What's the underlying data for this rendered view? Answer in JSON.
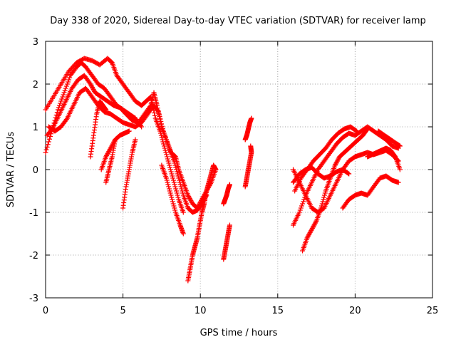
{
  "chart_data": {
    "type": "scatter",
    "title": "Day 338 of 2020, Sidereal Day-to-day VTEC variation (SDTVAR) for receiver lamp",
    "xlabel": "GPS time / hours",
    "ylabel": "SDTVAR / TECUs",
    "xlim": [
      0,
      25
    ],
    "ylim": [
      -3,
      3
    ],
    "x_ticks": [
      "0",
      "5",
      "10",
      "15",
      "20",
      "25"
    ],
    "y_ticks": [
      "-3",
      "-2",
      "-1",
      "0",
      "1",
      "2",
      "3"
    ],
    "grid": true,
    "marker": "+",
    "series": [
      {
        "color": "#ff0000",
        "points": [
          [
            0.0,
            0.4
          ],
          [
            0.4,
            0.9
          ],
          [
            0.8,
            1.4
          ],
          [
            1.2,
            1.8
          ],
          [
            1.6,
            2.2
          ],
          [
            2.0,
            2.4
          ],
          [
            2.3,
            2.5
          ],
          [
            2.6,
            2.4
          ],
          [
            3.0,
            2.2
          ],
          [
            3.4,
            2.0
          ],
          [
            3.8,
            1.9
          ],
          [
            4.2,
            1.7
          ],
          [
            4.6,
            1.5
          ],
          [
            5.0,
            1.4
          ],
          [
            5.4,
            1.3
          ],
          [
            5.8,
            1.2
          ],
          [
            6.2,
            1.0
          ]
        ]
      },
      {
        "color": "#ff0000",
        "points": [
          [
            0.0,
            1.4
          ],
          [
            0.5,
            1.7
          ],
          [
            1.0,
            2.0
          ],
          [
            1.5,
            2.3
          ],
          [
            2.0,
            2.5
          ],
          [
            2.5,
            2.6
          ],
          [
            3.0,
            2.55
          ],
          [
            3.5,
            2.45
          ],
          [
            4.0,
            2.6
          ],
          [
            4.3,
            2.5
          ],
          [
            4.6,
            2.2
          ],
          [
            5.0,
            2.0
          ],
          [
            5.4,
            1.8
          ],
          [
            5.8,
            1.6
          ],
          [
            6.2,
            1.5
          ],
          [
            6.5,
            1.6
          ],
          [
            6.8,
            1.7
          ],
          [
            7.1,
            1.2
          ],
          [
            7.4,
            0.9
          ],
          [
            7.7,
            0.5
          ],
          [
            8.0,
            0.1
          ],
          [
            8.3,
            -0.3
          ],
          [
            8.6,
            -0.7
          ],
          [
            8.9,
            -1.0
          ]
        ]
      },
      {
        "color": "#ff0000",
        "points": [
          [
            0.1,
            0.8
          ],
          [
            0.5,
            1.0
          ],
          [
            0.9,
            1.3
          ],
          [
            1.3,
            1.6
          ],
          [
            1.7,
            1.9
          ],
          [
            2.1,
            2.1
          ],
          [
            2.5,
            2.2
          ],
          [
            2.9,
            2.0
          ],
          [
            3.2,
            1.8
          ],
          [
            3.6,
            1.7
          ],
          [
            4.0,
            1.6
          ],
          [
            4.4,
            1.5
          ],
          [
            4.8,
            1.45
          ],
          [
            5.2,
            1.3
          ],
          [
            5.6,
            1.15
          ],
          [
            6.0,
            1.1
          ],
          [
            6.4,
            1.3
          ],
          [
            6.8,
            1.5
          ],
          [
            7.0,
            1.8
          ],
          [
            7.2,
            1.5
          ],
          [
            7.5,
            1.0
          ],
          [
            7.8,
            0.7
          ],
          [
            8.1,
            0.4
          ],
          [
            8.4,
            0.3
          ],
          [
            8.6,
            0.0
          ],
          [
            8.9,
            -0.3
          ],
          [
            9.2,
            -0.6
          ],
          [
            9.5,
            -0.8
          ],
          [
            9.8,
            -0.9
          ],
          [
            10.1,
            -0.7
          ],
          [
            10.4,
            -0.5
          ],
          [
            10.7,
            -0.3
          ],
          [
            11.0,
            0.0
          ]
        ]
      },
      {
        "color": "#ff0000",
        "points": [
          [
            0.2,
            1.0
          ],
          [
            0.6,
            0.9
          ],
          [
            1.0,
            1.0
          ],
          [
            1.4,
            1.2
          ],
          [
            1.8,
            1.5
          ],
          [
            2.2,
            1.8
          ],
          [
            2.6,
            1.9
          ],
          [
            3.0,
            1.7
          ],
          [
            3.4,
            1.5
          ],
          [
            3.8,
            1.35
          ],
          [
            4.2,
            1.3
          ],
          [
            4.6,
            1.2
          ],
          [
            5.0,
            1.1
          ],
          [
            5.4,
            1.05
          ],
          [
            5.8,
            1.0
          ],
          [
            6.2,
            1.1
          ],
          [
            6.6,
            1.3
          ],
          [
            7.0,
            1.5
          ],
          [
            7.3,
            1.35
          ],
          [
            7.6,
            0.9
          ],
          [
            8.0,
            0.5
          ],
          [
            8.3,
            0.2
          ],
          [
            8.6,
            -0.2
          ],
          [
            8.9,
            -0.6
          ],
          [
            9.2,
            -0.9
          ],
          [
            9.5,
            -1.0
          ],
          [
            9.8,
            -0.95
          ],
          [
            10.1,
            -0.8
          ],
          [
            10.4,
            -0.6
          ]
        ]
      },
      {
        "color": "#ff0000",
        "points": [
          [
            2.9,
            0.3
          ],
          [
            3.1,
            0.8
          ],
          [
            3.3,
            1.3
          ],
          [
            3.5,
            1.6
          ],
          [
            3.7,
            1.5
          ],
          [
            3.9,
            1.4
          ]
        ]
      },
      {
        "color": "#ff0000",
        "points": [
          [
            3.6,
            0.0
          ],
          [
            3.9,
            0.3
          ],
          [
            4.2,
            0.5
          ],
          [
            4.5,
            0.7
          ],
          [
            4.8,
            0.8
          ],
          [
            5.1,
            0.85
          ],
          [
            5.4,
            0.9
          ]
        ]
      },
      {
        "color": "#ff0000",
        "points": [
          [
            3.9,
            -0.3
          ],
          [
            4.1,
            0.0
          ],
          [
            4.3,
            0.3
          ],
          [
            4.5,
            0.7
          ]
        ]
      },
      {
        "color": "#ff0000",
        "points": [
          [
            5.0,
            -0.9
          ],
          [
            5.2,
            -0.4
          ],
          [
            5.4,
            0.0
          ],
          [
            5.6,
            0.4
          ],
          [
            5.8,
            0.7
          ]
        ]
      },
      {
        "color": "#ff0000",
        "points": [
          [
            7.5,
            0.1
          ],
          [
            7.8,
            -0.2
          ],
          [
            8.1,
            -0.6
          ],
          [
            8.4,
            -1.0
          ],
          [
            8.7,
            -1.3
          ],
          [
            8.9,
            -1.5
          ]
        ]
      },
      {
        "color": "#ff0000",
        "points": [
          [
            9.2,
            -2.6
          ],
          [
            9.35,
            -2.3
          ],
          [
            9.5,
            -2.0
          ],
          [
            9.65,
            -1.8
          ],
          [
            9.8,
            -1.6
          ],
          [
            9.95,
            -1.3
          ],
          [
            10.1,
            -1.0
          ],
          [
            10.25,
            -0.8
          ],
          [
            10.4,
            -0.5
          ],
          [
            10.55,
            -0.3
          ],
          [
            10.7,
            -0.1
          ],
          [
            10.85,
            0.1
          ],
          [
            11.0,
            0.0
          ]
        ]
      },
      {
        "color": "#ff0000",
        "points": [
          [
            11.5,
            -0.8
          ],
          [
            11.6,
            -0.7
          ],
          [
            11.7,
            -0.6
          ],
          [
            11.8,
            -0.45
          ],
          [
            11.9,
            -0.35
          ]
        ]
      },
      {
        "color": "#ff0000",
        "points": [
          [
            11.5,
            -2.1
          ],
          [
            11.6,
            -1.9
          ],
          [
            11.7,
            -1.7
          ],
          [
            11.8,
            -1.5
          ],
          [
            11.9,
            -1.3
          ]
        ]
      },
      {
        "color": "#ff0000",
        "points": [
          [
            12.9,
            -0.4
          ],
          [
            13.0,
            -0.2
          ],
          [
            13.1,
            0.0
          ],
          [
            13.2,
            0.2
          ],
          [
            13.3,
            0.4
          ],
          [
            13.25,
            0.55
          ]
        ]
      },
      {
        "color": "#ff0000",
        "points": [
          [
            12.9,
            0.7
          ],
          [
            13.0,
            0.8
          ],
          [
            13.1,
            0.95
          ],
          [
            13.2,
            1.1
          ],
          [
            13.3,
            1.2
          ]
        ]
      },
      {
        "color": "#ff0000",
        "points": [
          [
            16.0,
            -1.3
          ],
          [
            16.4,
            -1.0
          ],
          [
            16.8,
            -0.6
          ],
          [
            17.2,
            -0.3
          ],
          [
            17.6,
            0.0
          ],
          [
            18.0,
            0.2
          ],
          [
            18.4,
            0.4
          ],
          [
            18.8,
            0.6
          ],
          [
            19.2,
            0.75
          ],
          [
            19.6,
            0.85
          ],
          [
            20.0,
            0.8
          ],
          [
            20.4,
            0.9
          ],
          [
            20.8,
            1.0
          ],
          [
            21.2,
            0.9
          ],
          [
            21.6,
            0.8
          ],
          [
            22.0,
            0.7
          ],
          [
            22.4,
            0.55
          ],
          [
            22.8,
            0.5
          ]
        ]
      },
      {
        "color": "#ff0000",
        "points": [
          [
            16.1,
            -0.5
          ],
          [
            16.5,
            -0.2
          ],
          [
            16.9,
            0.0
          ],
          [
            17.3,
            0.2
          ],
          [
            17.7,
            0.35
          ],
          [
            18.1,
            0.5
          ],
          [
            18.5,
            0.7
          ],
          [
            18.9,
            0.85
          ],
          [
            19.3,
            0.95
          ],
          [
            19.7,
            1.0
          ],
          [
            20.1,
            0.9
          ]
        ]
      },
      {
        "color": "#ff0000",
        "points": [
          [
            16.0,
            -0.3
          ],
          [
            16.4,
            -0.1
          ],
          [
            16.8,
            0.0
          ],
          [
            17.2,
            0.05
          ],
          [
            17.6,
            -0.1
          ],
          [
            18.0,
            -0.2
          ],
          [
            18.4,
            -0.15
          ],
          [
            18.8,
            -0.05
          ],
          [
            19.2,
            0.0
          ],
          [
            19.6,
            -0.1
          ]
        ]
      },
      {
        "color": "#ff0000",
        "points": [
          [
            16.0,
            0.0
          ],
          [
            16.4,
            -0.3
          ],
          [
            16.8,
            -0.6
          ],
          [
            17.2,
            -0.9
          ],
          [
            17.6,
            -1.0
          ],
          [
            18.0,
            -0.9
          ],
          [
            18.4,
            -0.6
          ],
          [
            18.8,
            -0.3
          ],
          [
            19.2,
            0.0
          ],
          [
            19.6,
            0.2
          ],
          [
            20.0,
            0.3
          ],
          [
            20.4,
            0.35
          ],
          [
            20.8,
            0.4
          ],
          [
            21.2,
            0.35
          ],
          [
            21.6,
            0.4
          ],
          [
            22.0,
            0.45
          ],
          [
            22.4,
            0.35
          ],
          [
            22.8,
            0.2
          ]
        ]
      },
      {
        "color": "#ff0000",
        "points": [
          [
            16.6,
            -1.9
          ],
          [
            16.9,
            -1.6
          ],
          [
            17.2,
            -1.4
          ],
          [
            17.5,
            -1.2
          ],
          [
            17.8,
            -0.9
          ],
          [
            18.1,
            -0.5
          ],
          [
            18.4,
            -0.2
          ],
          [
            18.7,
            0.1
          ],
          [
            19.0,
            0.3
          ],
          [
            19.3,
            0.4
          ],
          [
            19.6,
            0.5
          ],
          [
            19.9,
            0.6
          ],
          [
            20.2,
            0.7
          ],
          [
            20.5,
            0.8
          ],
          [
            20.8,
            0.95
          ]
        ]
      },
      {
        "color": "#ff0000",
        "points": [
          [
            19.2,
            -0.9
          ],
          [
            19.6,
            -0.7
          ],
          [
            20.0,
            -0.6
          ],
          [
            20.4,
            -0.55
          ],
          [
            20.8,
            -0.6
          ],
          [
            21.2,
            -0.4
          ],
          [
            21.6,
            -0.2
          ],
          [
            22.0,
            -0.15
          ],
          [
            22.4,
            -0.25
          ],
          [
            22.8,
            -0.3
          ]
        ]
      },
      {
        "color": "#ff0000",
        "points": [
          [
            21.5,
            0.9
          ],
          [
            21.9,
            0.8
          ],
          [
            22.3,
            0.7
          ],
          [
            22.7,
            0.6
          ],
          [
            22.9,
            0.55
          ]
        ]
      },
      {
        "color": "#ff0000",
        "points": [
          [
            20.8,
            0.3
          ],
          [
            21.1,
            0.35
          ],
          [
            21.4,
            0.4
          ],
          [
            21.7,
            0.45
          ],
          [
            22.0,
            0.5
          ],
          [
            22.3,
            0.45
          ],
          [
            22.6,
            0.3
          ],
          [
            22.9,
            0.0
          ]
        ]
      }
    ]
  }
}
